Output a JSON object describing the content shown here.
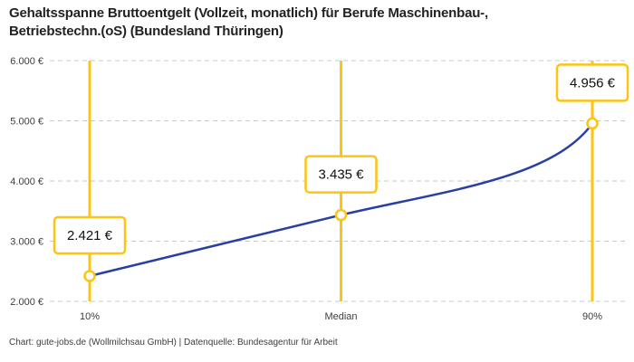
{
  "header": {
    "title_line1": "Gehaltsspanne Bruttoentgelt (Vollzeit, monatlich) für Berufe Maschinenbau-,",
    "title_line2": "Betriebstechn.(oS) (Bundesland Thüringen)"
  },
  "chart_data": {
    "type": "line",
    "title": "Gehaltsspanne Bruttoentgelt (Vollzeit, monatlich) für Berufe Maschinenbau-, Betriebstechn.(oS) (Bundesland Thüringen)",
    "categories": [
      "10%",
      "Median",
      "90%"
    ],
    "values": [
      2421,
      3435,
      4956
    ],
    "value_labels": [
      "2.421 €",
      "3.435 €",
      "4.956 €"
    ],
    "xlabel": "",
    "ylabel": "",
    "ylim": [
      2000,
      6000
    ],
    "yticks": [
      2000,
      3000,
      4000,
      5000,
      6000
    ],
    "ytick_labels": [
      "2.000 €",
      "3.000 €",
      "4.000 €",
      "5.000 €",
      "6.000 €"
    ],
    "grid": "horizontal-dashed",
    "legend": "none",
    "colors": {
      "line": "#283FA3",
      "accent": "#FDC413",
      "grid": "#C9C9C9",
      "marker_fill": "#FFFFFF",
      "label_text": "#111111",
      "axis_text": "#3D3D3D"
    }
  },
  "footer": {
    "attribution": "Chart: gute-jobs.de (Wollmilchsau GmbH) | Datenquelle: Bundesagentur für Arbeit"
  }
}
